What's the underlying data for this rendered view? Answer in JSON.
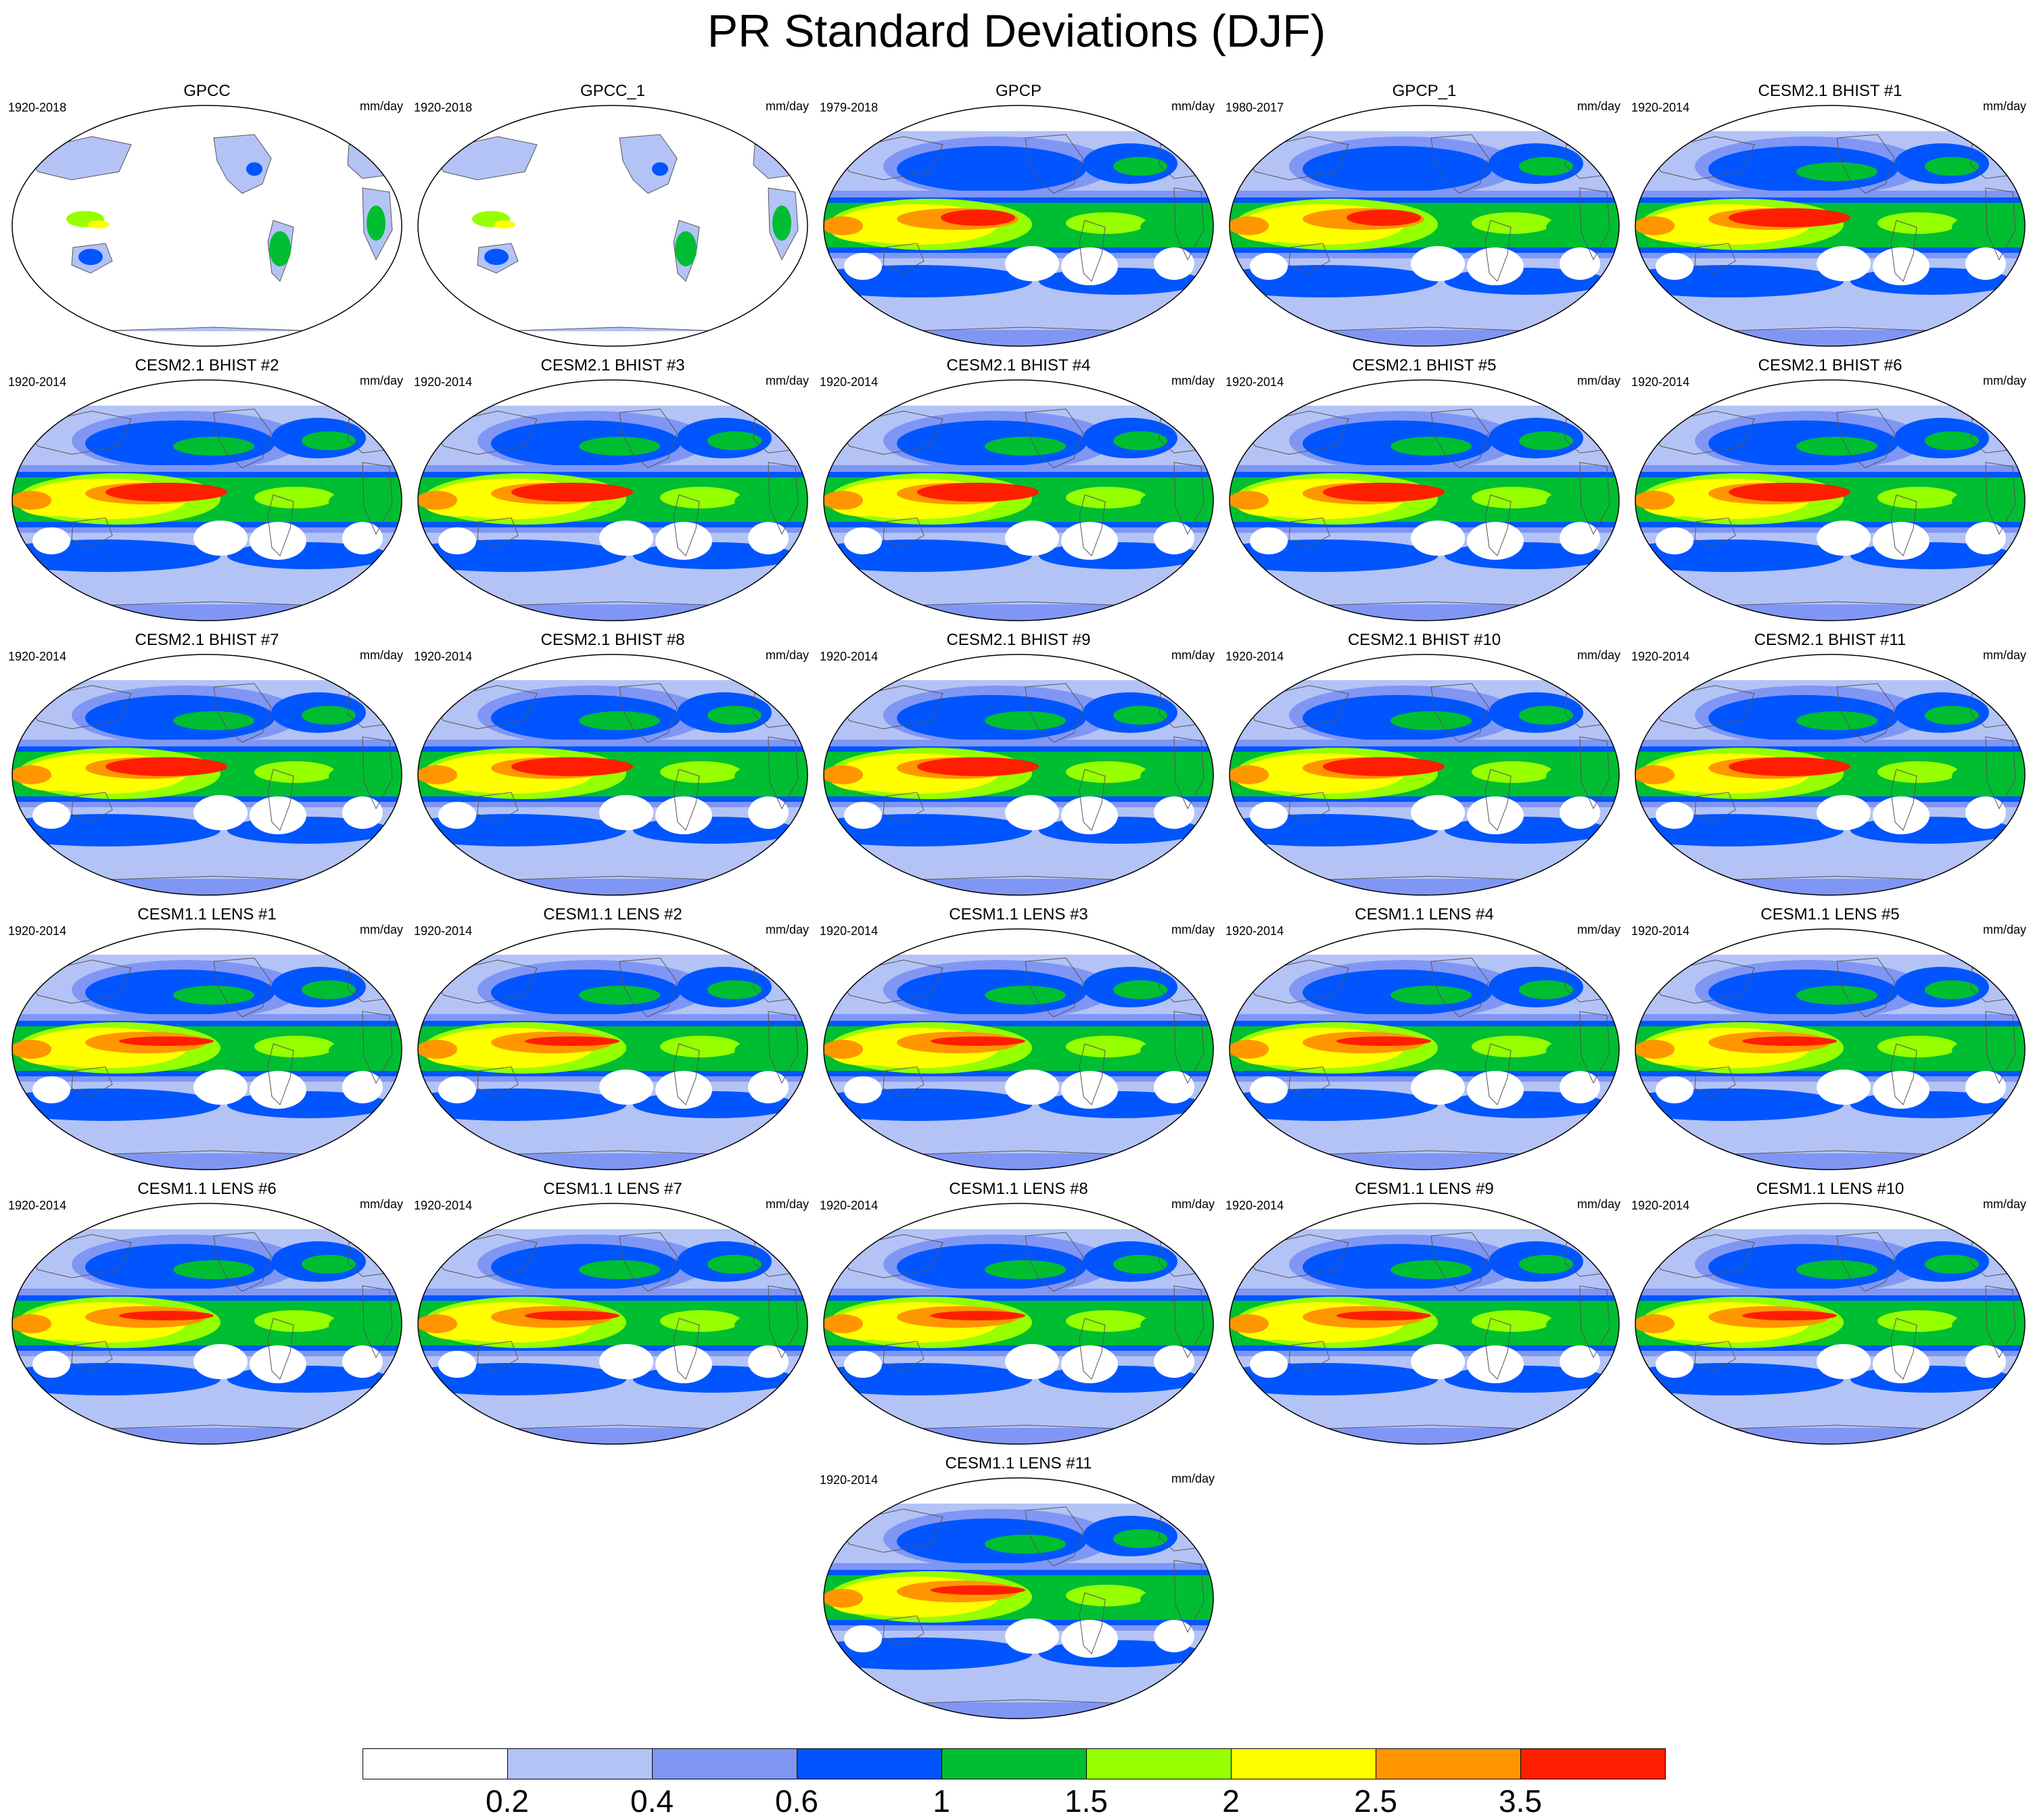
{
  "title": "PR Standard Deviations (DJF)",
  "units": "mm/day",
  "panels": [
    {
      "title": "GPCC",
      "years": "1920-2018",
      "pattern": "land-only"
    },
    {
      "title": "GPCC_1",
      "years": "1920-2018",
      "pattern": "land-only"
    },
    {
      "title": "GPCP",
      "years": "1979-2018",
      "pattern": "obs-global"
    },
    {
      "title": "GPCP_1",
      "years": "1980-2017",
      "pattern": "obs-global"
    },
    {
      "title": "CESM2.1 BHIST #1",
      "years": "1920-2014",
      "pattern": "model-bhist"
    },
    {
      "title": "CESM2.1 BHIST #2",
      "years": "1920-2014",
      "pattern": "model-bhist"
    },
    {
      "title": "CESM2.1 BHIST #3",
      "years": "1920-2014",
      "pattern": "model-bhist"
    },
    {
      "title": "CESM2.1 BHIST #4",
      "years": "1920-2014",
      "pattern": "model-bhist"
    },
    {
      "title": "CESM2.1 BHIST #5",
      "years": "1920-2014",
      "pattern": "model-bhist"
    },
    {
      "title": "CESM2.1 BHIST #6",
      "years": "1920-2014",
      "pattern": "model-bhist"
    },
    {
      "title": "CESM2.1 BHIST #7",
      "years": "1920-2014",
      "pattern": "model-bhist"
    },
    {
      "title": "CESM2.1 BHIST #8",
      "years": "1920-2014",
      "pattern": "model-bhist"
    },
    {
      "title": "CESM2.1 BHIST #9",
      "years": "1920-2014",
      "pattern": "model-bhist"
    },
    {
      "title": "CESM2.1 BHIST #10",
      "years": "1920-2014",
      "pattern": "model-bhist"
    },
    {
      "title": "CESM2.1 BHIST #11",
      "years": "1920-2014",
      "pattern": "model-bhist"
    },
    {
      "title": "CESM1.1 LENS #1",
      "years": "1920-2014",
      "pattern": "model-lens"
    },
    {
      "title": "CESM1.1 LENS #2",
      "years": "1920-2014",
      "pattern": "model-lens"
    },
    {
      "title": "CESM1.1 LENS #3",
      "years": "1920-2014",
      "pattern": "model-lens"
    },
    {
      "title": "CESM1.1 LENS #4",
      "years": "1920-2014",
      "pattern": "model-lens"
    },
    {
      "title": "CESM1.1 LENS #5",
      "years": "1920-2014",
      "pattern": "model-lens"
    },
    {
      "title": "CESM1.1 LENS #6",
      "years": "1920-2014",
      "pattern": "model-lens"
    },
    {
      "title": "CESM1.1 LENS #7",
      "years": "1920-2014",
      "pattern": "model-lens"
    },
    {
      "title": "CESM1.1 LENS #8",
      "years": "1920-2014",
      "pattern": "model-lens"
    },
    {
      "title": "CESM1.1 LENS #9",
      "years": "1920-2014",
      "pattern": "model-lens"
    },
    {
      "title": "CESM1.1 LENS #10",
      "years": "1920-2014",
      "pattern": "model-lens"
    },
    {
      "title": "CESM1.1 LENS #11",
      "years": "1920-2014",
      "pattern": "model-lens"
    }
  ],
  "colorbar": {
    "levels": [
      "0.2",
      "0.4",
      "0.6",
      "1",
      "1.5",
      "2",
      "2.5",
      "3.5"
    ],
    "colors": [
      "#ffffff",
      "#b4c3f5",
      "#8096f5",
      "#0055ff",
      "#00be32",
      "#96ff00",
      "#ffff00",
      "#ff9600",
      "#ff1e00"
    ]
  }
}
